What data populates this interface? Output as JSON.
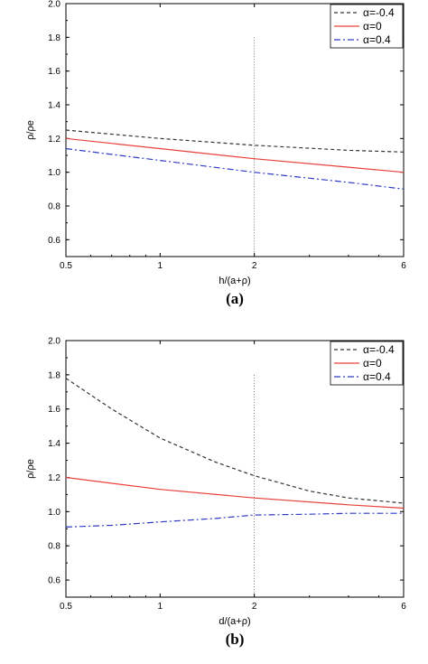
{
  "chart_data": [
    {
      "type": "line",
      "panel_label": "(a)",
      "xlabel": "h/(a+ρ)",
      "ylabel": "ρ/ρe",
      "x_scale": "log",
      "xlim": [
        0.5,
        6
      ],
      "ylim": [
        0.5,
        2.0
      ],
      "x_ticks": [
        0.5,
        1,
        2,
        6
      ],
      "x_tick_labels": [
        "0.5",
        "1",
        "2",
        "6"
      ],
      "y_ticks": [
        0.6,
        0.8,
        1.0,
        1.2,
        1.4,
        1.6,
        1.8,
        2.0
      ],
      "y_tick_labels": [
        "0.6",
        "0.8",
        "1.0",
        "1.2",
        "1.4",
        "1.6",
        "1.8",
        "2.0"
      ],
      "reference_line": {
        "x": 2,
        "y_range": [
          0.5,
          1.8
        ]
      },
      "legend_position": "top-right",
      "series": [
        {
          "name": "α=-0.4",
          "color": "#333333",
          "style": "dashed",
          "x": [
            0.5,
            1,
            2,
            4,
            6
          ],
          "values": [
            1.25,
            1.2,
            1.16,
            1.13,
            1.12
          ]
        },
        {
          "name": "α=0",
          "color": "#e8403a",
          "style": "solid",
          "x": [
            0.5,
            1,
            2,
            4,
            6
          ],
          "values": [
            1.2,
            1.14,
            1.08,
            1.03,
            1.0
          ]
        },
        {
          "name": "α=0.4",
          "color": "#2f3cc4",
          "style": "dashdot",
          "x": [
            0.5,
            1,
            2,
            4,
            6
          ],
          "values": [
            1.14,
            1.07,
            1.0,
            0.94,
            0.9
          ]
        }
      ]
    },
    {
      "type": "line",
      "panel_label": "(b)",
      "xlabel": "d/(a+ρ)",
      "ylabel": "ρ/ρe",
      "x_scale": "log",
      "xlim": [
        0.5,
        6
      ],
      "ylim": [
        0.5,
        2.0
      ],
      "x_ticks": [
        0.5,
        1,
        2,
        6
      ],
      "x_tick_labels": [
        "0.5",
        "1",
        "2",
        "6"
      ],
      "y_ticks": [
        0.6,
        0.8,
        1.0,
        1.2,
        1.4,
        1.6,
        1.8,
        2.0
      ],
      "y_tick_labels": [
        "0.6",
        "0.8",
        "1.0",
        "1.2",
        "1.4",
        "1.6",
        "1.8",
        "2.0"
      ],
      "reference_line": {
        "x": 2,
        "y_range": [
          0.5,
          1.8
        ]
      },
      "legend_position": "top-right",
      "series": [
        {
          "name": "α=-0.4",
          "color": "#333333",
          "style": "dashed",
          "x": [
            0.5,
            0.7,
            1,
            1.5,
            2,
            3,
            4,
            6
          ],
          "values": [
            1.78,
            1.6,
            1.43,
            1.29,
            1.21,
            1.12,
            1.08,
            1.05
          ]
        },
        {
          "name": "α=0",
          "color": "#e8403a",
          "style": "solid",
          "x": [
            0.5,
            1,
            2,
            4,
            6
          ],
          "values": [
            1.2,
            1.13,
            1.08,
            1.04,
            1.02
          ]
        },
        {
          "name": "α=0.4",
          "color": "#2f3cc4",
          "style": "dashdot",
          "x": [
            0.5,
            0.7,
            1,
            1.5,
            2,
            3,
            4,
            6
          ],
          "values": [
            0.91,
            0.92,
            0.94,
            0.96,
            0.98,
            0.985,
            0.99,
            0.99
          ]
        }
      ]
    }
  ]
}
